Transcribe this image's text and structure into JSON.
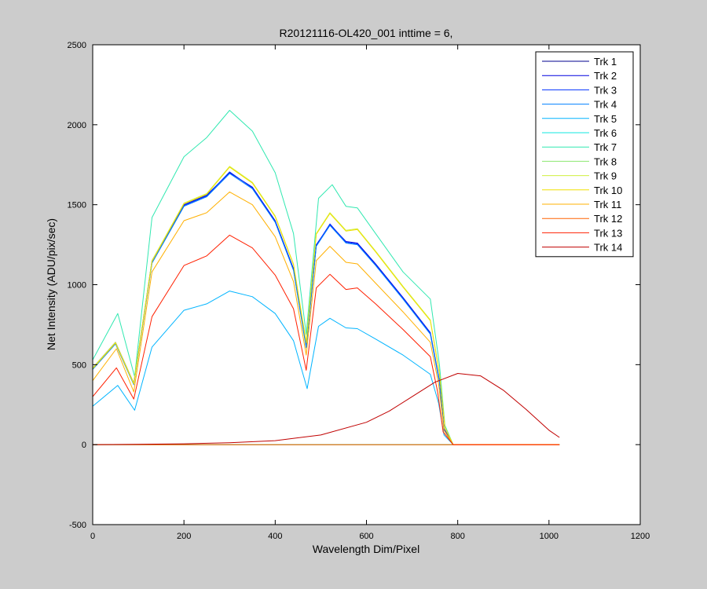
{
  "chart_data": {
    "type": "line",
    "title": "R20121116-OL420_001 inttime = 6,",
    "xlabel": "Wavelength Dim/Pixel",
    "ylabel": "Net Intensity (ADU/pix/sec)",
    "xlim": [
      0,
      1200
    ],
    "ylim": [
      -500,
      2500
    ],
    "xticks": [
      0,
      200,
      400,
      600,
      800,
      1000,
      1200
    ],
    "yticks": [
      -500,
      0,
      500,
      1000,
      1500,
      2000,
      2500
    ],
    "xtick_labels": [
      "0",
      "200",
      "400",
      "600",
      "800",
      "1000",
      "1200"
    ],
    "ytick_labels": [
      "-500",
      "0",
      "500",
      "1000",
      "1500",
      "2000",
      "2500"
    ],
    "grid": false,
    "legend_position": "top-right",
    "series": [
      {
        "name": "Trk 1",
        "color": "#00008f",
        "x": [
          0,
          1023
        ],
        "y": [
          0,
          0
        ]
      },
      {
        "name": "Trk 2",
        "color": "#0000df",
        "x": [
          0,
          50,
          90,
          130,
          200,
          250,
          300,
          350,
          400,
          440,
          468,
          490,
          520,
          555,
          580,
          620,
          680,
          740,
          760,
          770,
          790,
          1023
        ],
        "y": [
          480,
          640,
          385,
          1150,
          1500,
          1560,
          1700,
          1610,
          1400,
          1100,
          615,
          1250,
          1375,
          1270,
          1260,
          1130,
          920,
          700,
          400,
          100,
          0,
          0
        ]
      },
      {
        "name": "Trk 3",
        "color": "#0030ff",
        "x": [
          0,
          50,
          90,
          130,
          200,
          250,
          300,
          350,
          400,
          440,
          468,
          490,
          520,
          555,
          580,
          620,
          680,
          740,
          760,
          770,
          790,
          1023
        ],
        "y": [
          475,
          635,
          380,
          1140,
          1495,
          1555,
          1705,
          1605,
          1395,
          1095,
          610,
          1245,
          1380,
          1265,
          1255,
          1125,
          915,
          695,
          395,
          95,
          0,
          0
        ]
      },
      {
        "name": "Trk 4",
        "color": "#0080ff",
        "x": [
          0,
          50,
          90,
          130,
          200,
          250,
          300,
          350,
          400,
          440,
          468,
          490,
          520,
          555,
          580,
          620,
          680,
          740,
          760,
          770,
          790,
          1023
        ],
        "y": [
          470,
          630,
          375,
          1135,
          1490,
          1550,
          1695,
          1600,
          1390,
          1090,
          605,
          1240,
          1370,
          1260,
          1250,
          1120,
          910,
          690,
          390,
          90,
          0,
          0
        ]
      },
      {
        "name": "Trk 5",
        "color": "#00b4ff",
        "x": [
          0,
          55,
          92,
          130,
          200,
          250,
          300,
          350,
          400,
          440,
          470,
          495,
          520,
          555,
          580,
          620,
          680,
          740,
          758,
          770,
          790,
          1023
        ],
        "y": [
          240,
          370,
          215,
          610,
          840,
          880,
          960,
          925,
          820,
          650,
          350,
          740,
          790,
          730,
          725,
          660,
          560,
          440,
          260,
          60,
          0,
          0
        ]
      },
      {
        "name": "Trk 6",
        "color": "#10e8e0",
        "x": [
          0,
          1023
        ],
        "y": [
          0,
          0
        ]
      },
      {
        "name": "Trk 7",
        "color": "#30e8b0",
        "x": [
          0,
          55,
          92,
          130,
          200,
          250,
          300,
          350,
          400,
          440,
          468,
          495,
          525,
          555,
          580,
          620,
          680,
          740,
          760,
          772,
          790,
          1023
        ],
        "y": [
          530,
          820,
          425,
          1420,
          1800,
          1920,
          2090,
          1960,
          1700,
          1320,
          690,
          1540,
          1625,
          1490,
          1480,
          1320,
          1080,
          910,
          500,
          120,
          0,
          0
        ]
      },
      {
        "name": "Trk 8",
        "color": "#8ce870",
        "x": [
          0,
          1023
        ],
        "y": [
          0,
          0
        ]
      },
      {
        "name": "Trk 9",
        "color": "#d0f040",
        "x": [
          0,
          50,
          90,
          130,
          200,
          250,
          300,
          350,
          400,
          440,
          468,
          490,
          520,
          555,
          580,
          620,
          680,
          740,
          760,
          772,
          790,
          1023
        ],
        "y": [
          480,
          640,
          385,
          1150,
          1510,
          1570,
          1740,
          1640,
          1430,
          1130,
          640,
          1320,
          1450,
          1340,
          1350,
          1210,
          990,
          780,
          450,
          110,
          0,
          0
        ]
      },
      {
        "name": "Trk 10",
        "color": "#f0e000",
        "x": [
          0,
          50,
          90,
          130,
          200,
          250,
          300,
          350,
          400,
          440,
          468,
          490,
          520,
          555,
          580,
          620,
          680,
          740,
          760,
          772,
          790,
          1023
        ],
        "y": [
          475,
          635,
          380,
          1145,
          1505,
          1565,
          1735,
          1635,
          1425,
          1125,
          635,
          1315,
          1445,
          1335,
          1345,
          1205,
          985,
          775,
          445,
          105,
          0,
          0
        ]
      },
      {
        "name": "Trk 11",
        "color": "#ffb000",
        "x": [
          0,
          52,
          90,
          130,
          200,
          250,
          300,
          350,
          400,
          440,
          468,
          490,
          520,
          555,
          580,
          620,
          680,
          740,
          758,
          770,
          790,
          1023
        ],
        "y": [
          400,
          600,
          330,
          1080,
          1400,
          1450,
          1580,
          1500,
          1300,
          1020,
          560,
          1150,
          1240,
          1140,
          1130,
          1010,
          830,
          640,
          380,
          90,
          0,
          0
        ]
      },
      {
        "name": "Trk 12",
        "color": "#ff6400",
        "x": [
          0,
          1023
        ],
        "y": [
          0,
          0
        ]
      },
      {
        "name": "Trk 13",
        "color": "#ff2000",
        "x": [
          0,
          52,
          90,
          130,
          200,
          250,
          300,
          350,
          400,
          440,
          468,
          490,
          520,
          555,
          580,
          620,
          680,
          740,
          756,
          768,
          790,
          1023
        ],
        "y": [
          300,
          480,
          285,
          800,
          1120,
          1180,
          1310,
          1230,
          1060,
          850,
          465,
          980,
          1065,
          970,
          980,
          880,
          720,
          550,
          330,
          80,
          0,
          0
        ]
      },
      {
        "name": "Trk 14",
        "color": "#c00000",
        "x": [
          0,
          100,
          200,
          300,
          400,
          500,
          600,
          650,
          700,
          750,
          800,
          850,
          900,
          950,
          1000,
          1023
        ],
        "y": [
          0,
          2,
          5,
          12,
          25,
          60,
          140,
          210,
          300,
          390,
          445,
          430,
          340,
          220,
          90,
          45
        ]
      }
    ]
  }
}
